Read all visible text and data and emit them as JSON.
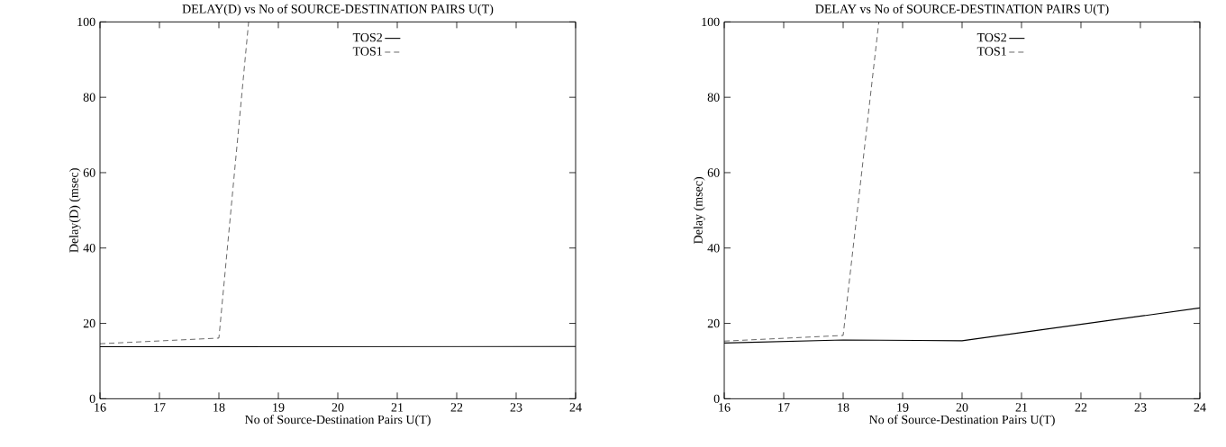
{
  "chart_data": [
    {
      "type": "line",
      "title": "DELAY(D) vs No of SOURCE-DESTINATION PAIRS U(T)",
      "xlabel": "No of Source-Destination Pairs U(T)",
      "ylabel": "Delay(D) (msec)",
      "xlim": [
        16,
        24
      ],
      "ylim": [
        0,
        100
      ],
      "xticks": [
        16,
        17,
        18,
        19,
        20,
        21,
        22,
        23,
        24
      ],
      "yticks": [
        0,
        20,
        40,
        60,
        80,
        100
      ],
      "legend": "top",
      "marker": "none",
      "grid": false,
      "series": [
        {
          "name": "TOS2",
          "color": "#000000",
          "line_style": "solid",
          "x": [
            16,
            24
          ],
          "values": [
            13.8,
            13.9
          ]
        },
        {
          "name": "TOS1",
          "color": "#000000",
          "line_style": "dashed",
          "x": [
            16,
            18,
            18.5
          ],
          "values": [
            14.6,
            16.1,
            100
          ]
        }
      ]
    },
    {
      "type": "line",
      "title": "DELAY vs No of SOURCE-DESTINATION PAIRS U(T)",
      "xlabel": "No of Source-Destination Pairs U(T)",
      "ylabel": "Delay (msec)",
      "xlim": [
        16,
        24
      ],
      "ylim": [
        0,
        100
      ],
      "xticks": [
        16,
        17,
        18,
        19,
        20,
        21,
        22,
        23,
        24
      ],
      "yticks": [
        0,
        20,
        40,
        60,
        80,
        100
      ],
      "legend": "top",
      "marker": "none",
      "grid": false,
      "series": [
        {
          "name": "TOS2",
          "color": "#000000",
          "line_style": "solid",
          "x": [
            16,
            18,
            20,
            24
          ],
          "values": [
            14.8,
            15.6,
            15.4,
            24.1
          ]
        },
        {
          "name": "TOS1",
          "color": "#000000",
          "line_style": "dashed",
          "x": [
            16,
            18,
            18.6
          ],
          "values": [
            15.3,
            16.8,
            100
          ]
        }
      ]
    }
  ]
}
